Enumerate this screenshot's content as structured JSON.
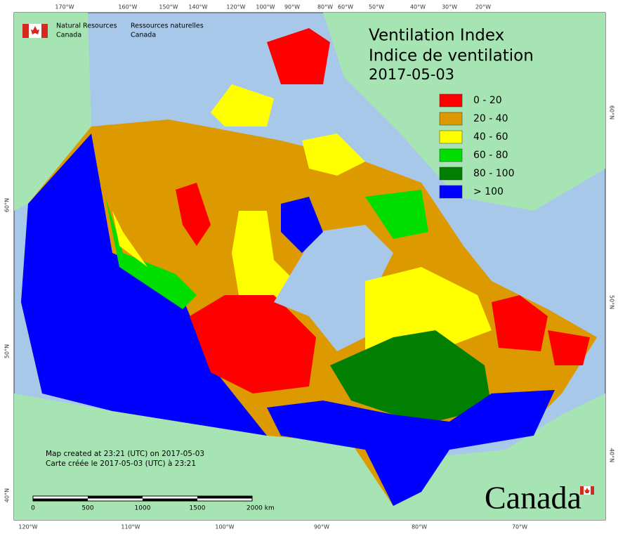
{
  "header": {
    "title": "Ventilation Index",
    "title_fr": "Indice de ventilation",
    "date": "2017-05-03"
  },
  "agency": {
    "en": [
      "Natural Resources",
      "Canada"
    ],
    "fr": [
      "Ressources naturelles",
      "Canada"
    ]
  },
  "legend": [
    {
      "label": "0 - 20",
      "color": "#ff0000"
    },
    {
      "label": "20 - 40",
      "color": "#dd9900"
    },
    {
      "label": "40 - 60",
      "color": "#ffff00"
    },
    {
      "label": "60 - 80",
      "color": "#00dd00"
    },
    {
      "label": "80 - 100",
      "color": "#007f00"
    },
    {
      "label": "> 100",
      "color": "#0000ff"
    }
  ],
  "graticule": {
    "top": [
      "170°W",
      "160°W",
      "150°W",
      "140°W",
      "120°W",
      "100°W",
      "90°W",
      "80°W",
      "60°W",
      "50°W",
      "40°W",
      "30°W",
      "20°W"
    ],
    "bottom": [
      "120°W",
      "110°W",
      "100°W",
      "90°W",
      "80°W",
      "70°W"
    ],
    "left": [
      "60°N",
      "50°N",
      "40°N"
    ],
    "right": [
      "60°N",
      "50°N",
      "40°N"
    ]
  },
  "footer": {
    "created_en": "Map created at 23:21 (UTC) on 2017-05-03",
    "created_fr": "Carte créée le 2017-05-03 (UTC) à 23:21"
  },
  "scale_bar": {
    "labels": [
      "0",
      "500",
      "1000",
      "1500",
      "2000  km"
    ]
  },
  "wordmark": "Canada"
}
